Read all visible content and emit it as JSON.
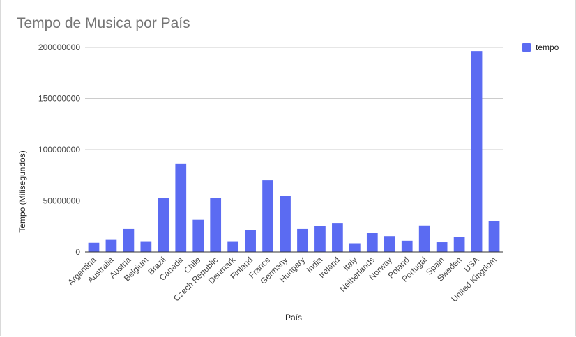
{
  "chart_data": {
    "type": "bar",
    "title": "Tempo de Musica por País",
    "xlabel": "País",
    "ylabel": "Tempo (Milisegundos)",
    "ylim": [
      0,
      200000000
    ],
    "yticks": [
      "0",
      "50000000",
      "100000000",
      "150000000",
      "200000000"
    ],
    "grid": true,
    "legend_position": "top-right",
    "color": "#5b6bf2",
    "categories": [
      "Argentina",
      "Australia",
      "Austria",
      "Belgium",
      "Brazil",
      "Canada",
      "Chile",
      "Czech Republic",
      "Denmark",
      "Finland",
      "France",
      "Germany",
      "Hungary",
      "India",
      "Ireland",
      "Italy",
      "Netherlands",
      "Norway",
      "Poland",
      "Portugal",
      "Spain",
      "Sweden",
      "USA",
      "United Kingdom"
    ],
    "series": [
      {
        "name": "tempo",
        "values": [
          9000000,
          12500000,
          22500000,
          10500000,
          52500000,
          86500000,
          31500000,
          52500000,
          10500000,
          21500000,
          70000000,
          54500000,
          22500000,
          25500000,
          28500000,
          8500000,
          18500000,
          15500000,
          11000000,
          26000000,
          9500000,
          14500000,
          196500000,
          30000000
        ]
      }
    ]
  }
}
